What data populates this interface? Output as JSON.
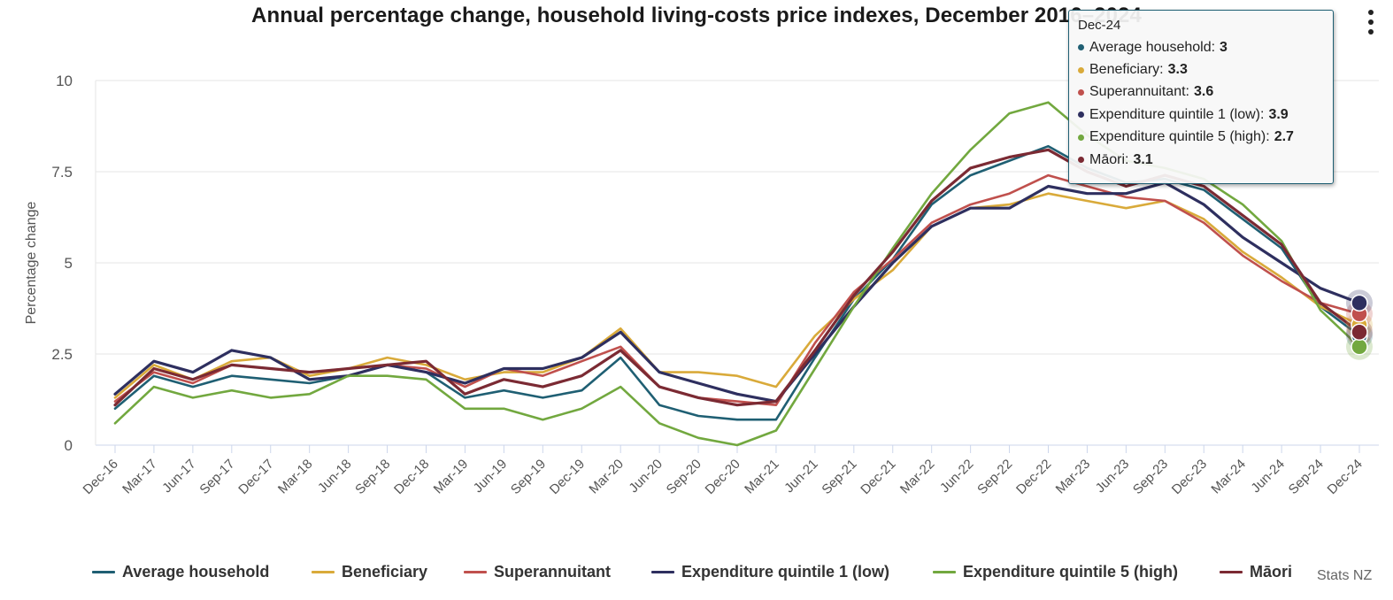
{
  "chart_data": {
    "type": "line",
    "title": "Annual percentage change, household living-costs price indexes, December 2016–2024",
    "ylabel": "Percentage change",
    "xlabel": "",
    "ylim": [
      0,
      10
    ],
    "yticks": [
      0,
      2.5,
      5,
      7.5,
      10
    ],
    "ytick_labels": [
      "0",
      "2.5",
      "5",
      "7.5",
      "10"
    ],
    "grid": true,
    "legend_position": "bottom",
    "categories": [
      "Dec-16",
      "Mar-17",
      "Jun-17",
      "Sep-17",
      "Dec-17",
      "Mar-18",
      "Jun-18",
      "Sep-18",
      "Dec-18",
      "Mar-19",
      "Jun-19",
      "Sep-19",
      "Dec-19",
      "Mar-20",
      "Jun-20",
      "Sep-20",
      "Dec-20",
      "Mar-21",
      "Jun-21",
      "Sep-21",
      "Dec-21",
      "Mar-22",
      "Jun-22",
      "Sep-22",
      "Dec-22",
      "Mar-23",
      "Jun-23",
      "Sep-23",
      "Dec-23",
      "Mar-24",
      "Jun-24",
      "Sep-24",
      "Dec-24"
    ],
    "series": [
      {
        "name": "Average household",
        "color": "#1f5f73",
        "values": [
          1.0,
          1.9,
          1.6,
          1.9,
          1.8,
          1.7,
          1.9,
          2.2,
          2.0,
          1.3,
          1.5,
          1.3,
          1.5,
          2.4,
          1.1,
          0.8,
          0.7,
          0.7,
          2.4,
          4.0,
          5.1,
          6.6,
          7.4,
          7.8,
          8.2,
          7.6,
          7.2,
          7.3,
          7.0,
          6.2,
          5.4,
          3.8,
          3.0
        ]
      },
      {
        "name": "Beneficiary",
        "color": "#d9aa3a",
        "values": [
          1.3,
          2.2,
          1.8,
          2.3,
          2.4,
          1.9,
          2.1,
          2.4,
          2.2,
          1.8,
          2.0,
          2.0,
          2.4,
          3.2,
          2.0,
          2.0,
          1.9,
          1.6,
          3.0,
          4.0,
          4.8,
          6.0,
          6.5,
          6.6,
          6.9,
          6.7,
          6.5,
          6.7,
          6.2,
          5.3,
          4.6,
          3.8,
          3.3
        ]
      },
      {
        "name": "Superannuitant",
        "color": "#c0504d",
        "values": [
          1.2,
          2.0,
          1.7,
          2.2,
          2.1,
          2.0,
          2.1,
          2.2,
          2.1,
          1.6,
          2.1,
          1.9,
          2.3,
          2.7,
          1.6,
          1.3,
          1.2,
          1.1,
          2.8,
          4.2,
          5.1,
          6.1,
          6.6,
          6.9,
          7.4,
          7.1,
          6.8,
          6.7,
          6.1,
          5.2,
          4.5,
          3.9,
          3.6
        ]
      },
      {
        "name": "Expenditure quintile 1 (low)",
        "color": "#2e2f5f",
        "values": [
          1.4,
          2.3,
          2.0,
          2.6,
          2.4,
          1.8,
          1.9,
          2.2,
          2.0,
          1.7,
          2.1,
          2.1,
          2.4,
          3.1,
          2.0,
          1.7,
          1.4,
          1.2,
          2.5,
          3.8,
          5.0,
          6.0,
          6.5,
          6.5,
          7.1,
          6.9,
          6.9,
          7.2,
          6.6,
          5.7,
          5.0,
          4.3,
          3.9
        ]
      },
      {
        "name": "Expenditure quintile 5 (high)",
        "color": "#72a83f",
        "values": [
          0.6,
          1.6,
          1.3,
          1.5,
          1.3,
          1.4,
          1.9,
          1.9,
          1.8,
          1.0,
          1.0,
          0.7,
          1.0,
          1.6,
          0.6,
          0.2,
          0.0,
          0.4,
          2.1,
          3.8,
          5.4,
          6.9,
          8.1,
          9.1,
          9.4,
          8.5,
          7.8,
          7.6,
          7.3,
          6.6,
          5.6,
          3.7,
          2.7
        ]
      },
      {
        "name": "Māori",
        "color": "#7b2a33",
        "values": [
          1.1,
          2.1,
          1.8,
          2.2,
          2.1,
          2.0,
          2.1,
          2.2,
          2.3,
          1.4,
          1.8,
          1.6,
          1.9,
          2.6,
          1.6,
          1.3,
          1.1,
          1.2,
          2.6,
          4.1,
          5.3,
          6.7,
          7.6,
          7.9,
          8.1,
          7.5,
          7.1,
          7.4,
          7.1,
          6.3,
          5.5,
          3.9,
          3.1
        ]
      }
    ]
  },
  "tooltip": {
    "header": "Dec-24",
    "rows": [
      {
        "label": "Average household: ",
        "value": "3",
        "color": "#1f5f73"
      },
      {
        "label": "Beneficiary: ",
        "value": "3.3",
        "color": "#d9aa3a"
      },
      {
        "label": "Superannuitant: ",
        "value": "3.6",
        "color": "#c0504d"
      },
      {
        "label": "Expenditure quintile 1 (low): ",
        "value": "3.9",
        "color": "#2e2f5f"
      },
      {
        "label": "Expenditure quintile 5 (high): ",
        "value": "2.7",
        "color": "#72a83f"
      },
      {
        "label": "Māori: ",
        "value": "3.1",
        "color": "#7b2a33"
      }
    ]
  },
  "credits": "Stats NZ",
  "menu_icon": "kebab-menu-icon"
}
